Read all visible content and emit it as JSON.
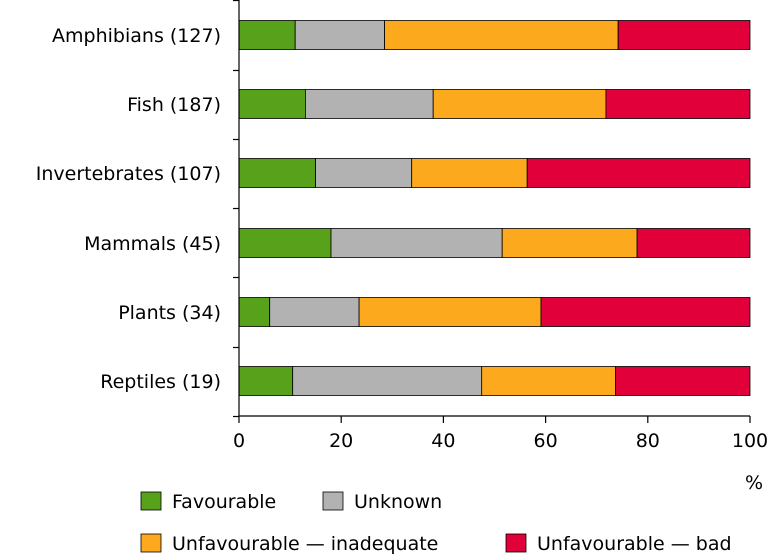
{
  "chart_data": {
    "type": "bar",
    "orientation": "horizontal",
    "stacked": true,
    "title": "",
    "xlabel": "%",
    "ylabel": "",
    "xlim": [
      0,
      100
    ],
    "xticks": [
      "0",
      "20",
      "40",
      "60",
      "80",
      "100"
    ],
    "grid": false,
    "legend_position": "bottom",
    "categories": [
      "Amphibians (127)",
      "Fish (187)",
      "Invertebrates (107)",
      "Mammals (45)",
      "Plants (34)",
      "Reptiles (19)"
    ],
    "series": [
      {
        "name": "Favourable",
        "color": "#58a21b",
        "values": [
          11,
          13,
          15,
          18,
          6,
          10.5
        ]
      },
      {
        "name": "Unknown",
        "color": "#b2b2b2",
        "values": [
          17.5,
          25,
          18.8,
          33.5,
          17.5,
          37
        ]
      },
      {
        "name": "Unfavourable — inadequate",
        "color": "#fda91e",
        "values": [
          45.7,
          33.8,
          22.6,
          26.4,
          35.6,
          26.2
        ]
      },
      {
        "name": "Unfavourable — bad",
        "color": "#e1003a",
        "values": [
          25.8,
          28.2,
          43.6,
          22.1,
          40.9,
          26.3
        ]
      }
    ]
  }
}
